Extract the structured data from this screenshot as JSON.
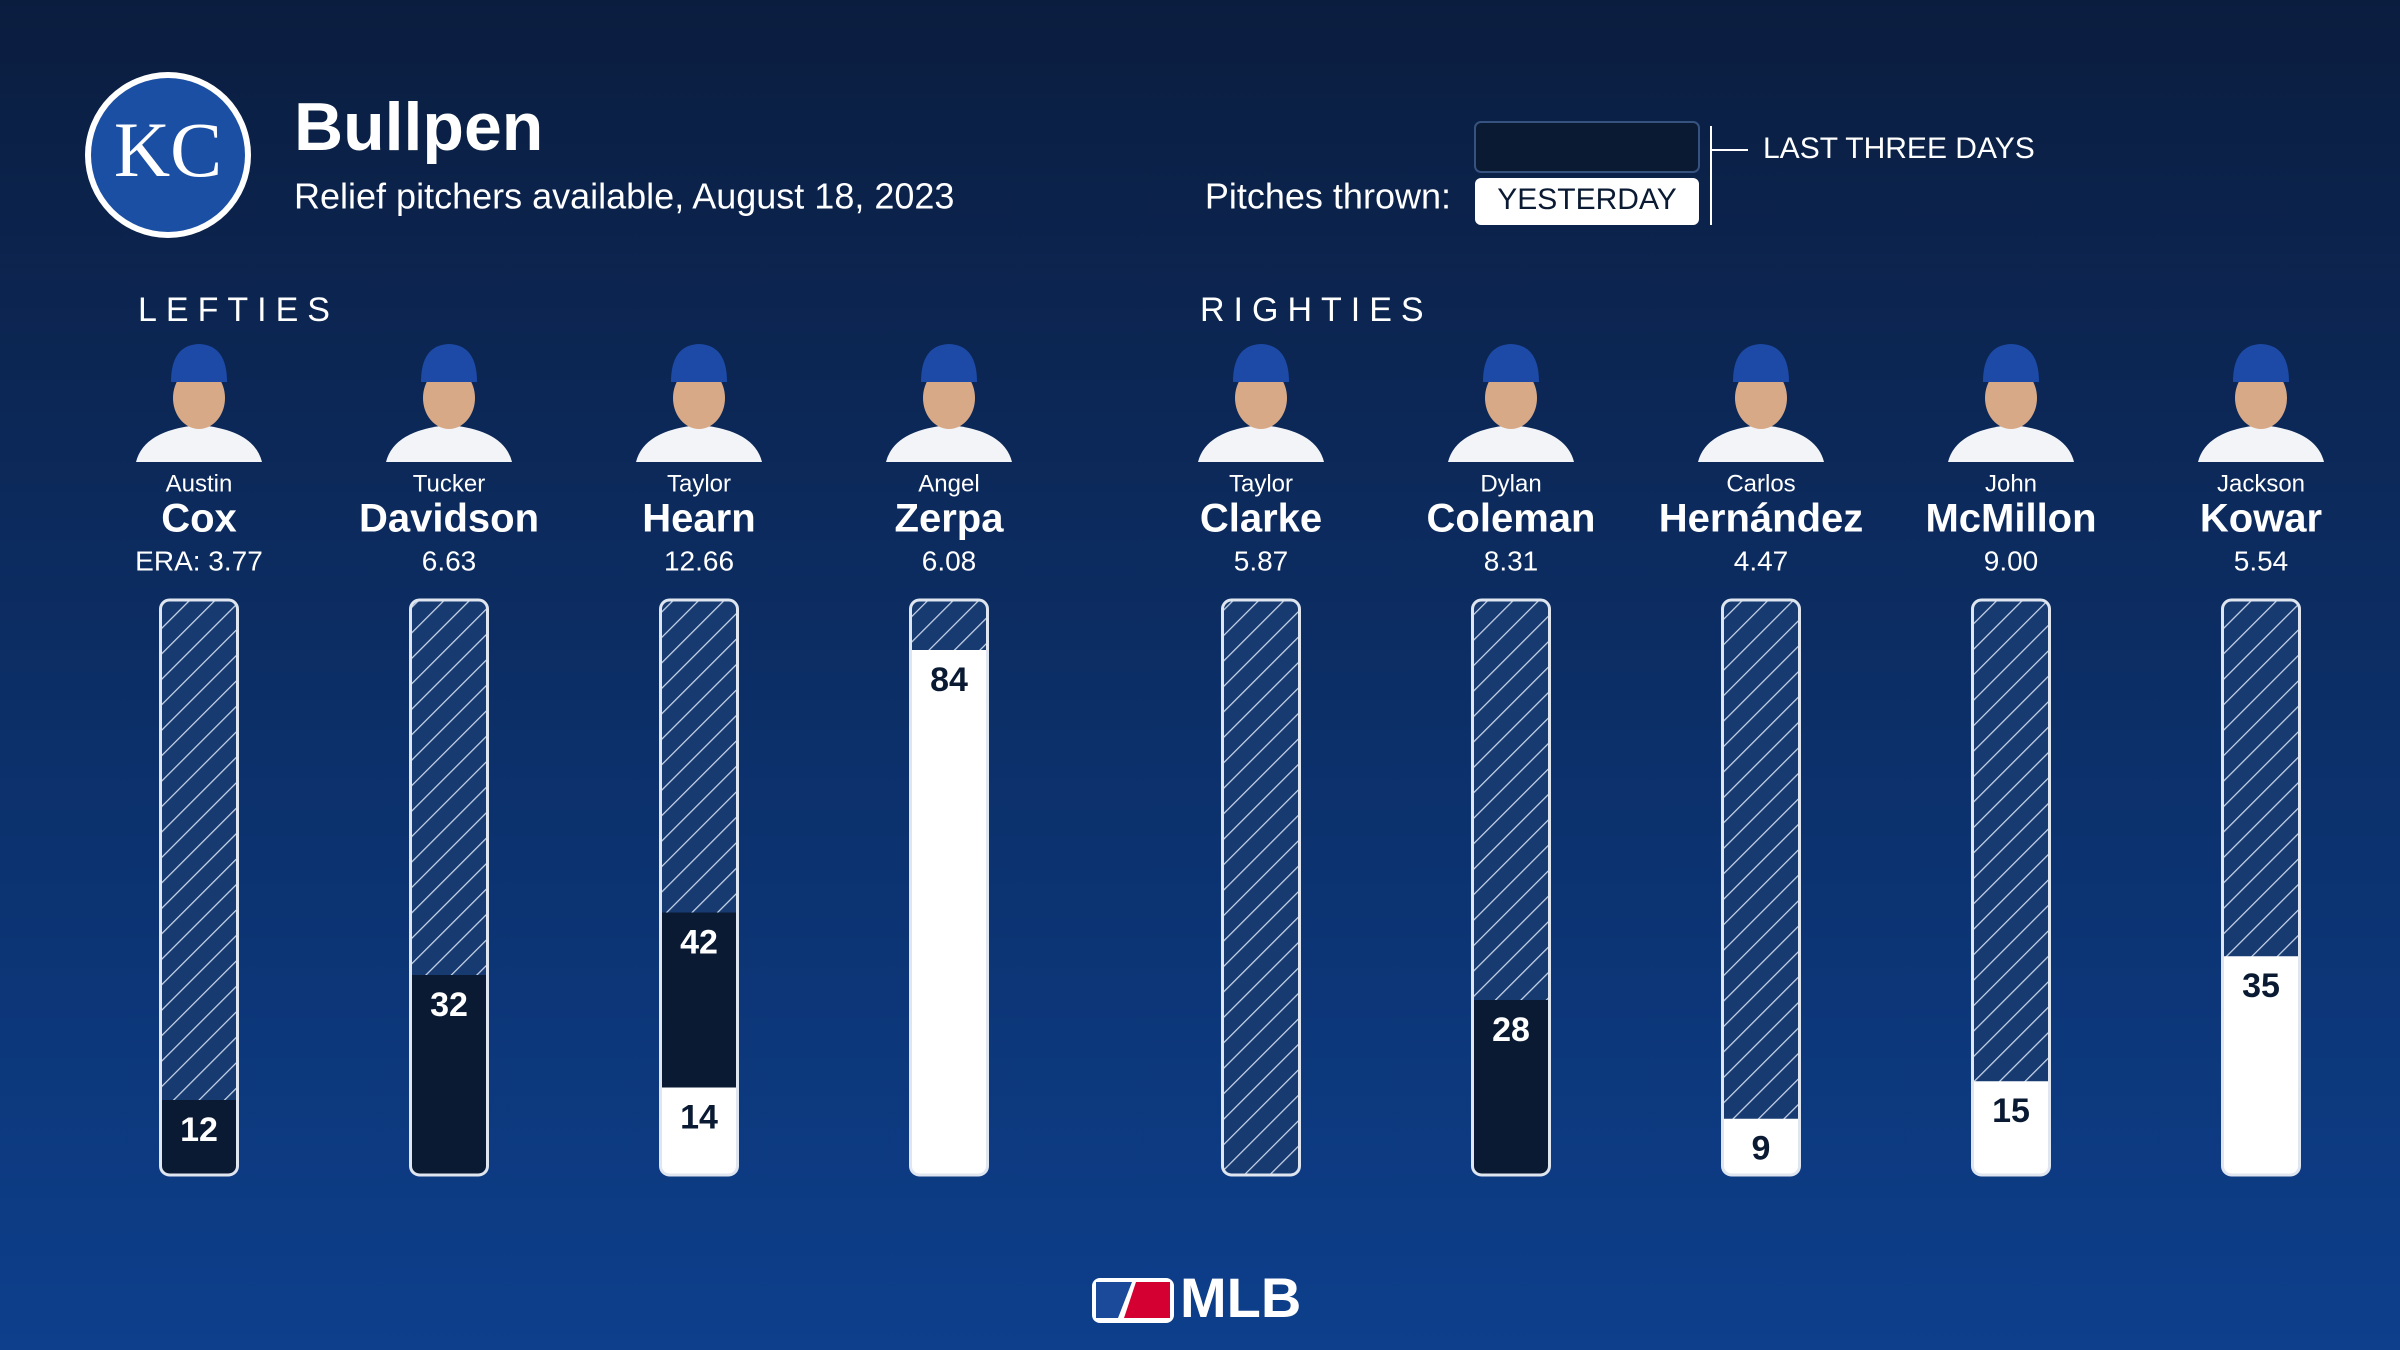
{
  "chart_data": {
    "type": "bar",
    "title": "Bullpen",
    "subtitle": "Relief pitchers available, August 18, 2023",
    "logo_text": "KC",
    "legend_title": "Pitches thrown:",
    "groups": [
      "LEFTIES",
      "LEFTIES",
      "LEFTIES",
      "LEFTIES",
      "RIGHTIES",
      "RIGHTIES",
      "RIGHTIES",
      "RIGHTIES",
      "RIGHTIES"
    ],
    "first_names": [
      "Austin",
      "Tucker",
      "Taylor",
      "Angel",
      "Taylor",
      "Dylan",
      "Carlos",
      "John",
      "Jackson"
    ],
    "categories": [
      "Cox",
      "Davidson",
      "Hearn",
      "Zerpa",
      "Clarke",
      "Coleman",
      "Hernández",
      "McMillon",
      "Kowar"
    ],
    "eras": [
      "ERA: 3.77",
      "6.63",
      "12.66",
      "6.08",
      "5.87",
      "8.31",
      "4.47",
      "9.00",
      "5.54"
    ],
    "series": [
      {
        "name": "YESTERDAY",
        "color": "#ffffff",
        "values": [
          null,
          null,
          14,
          84,
          null,
          null,
          9,
          15,
          35
        ]
      },
      {
        "name": "LAST THREE DAYS",
        "color": "#0a1a33",
        "values": [
          12,
          32,
          42,
          null,
          null,
          28,
          null,
          null,
          null
        ]
      }
    ],
    "ylim": [
      0,
      92
    ],
    "footer_logo": "MLB"
  }
}
